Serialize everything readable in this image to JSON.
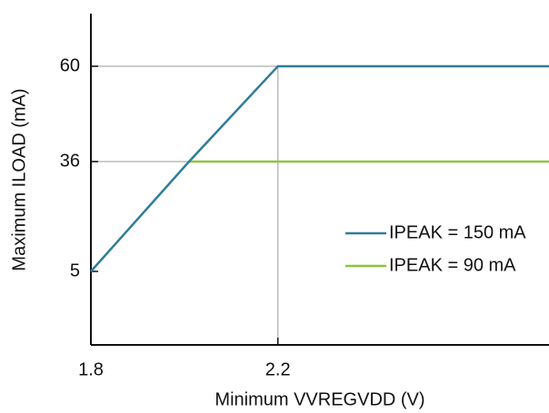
{
  "chart_data": {
    "type": "line",
    "x_label": "Minimum VVREGVDD (V)",
    "y_label": "Maximum ILOAD (mA)",
    "x": [
      1.8,
      2.01,
      2.2,
      2.78
    ],
    "series": [
      {
        "name": "IPEAK = 150 mA",
        "color": "#2e7e98",
        "values": [
          5,
          36,
          60,
          60
        ]
      },
      {
        "name": "IPEAK = 90 mA",
        "color": "#8cc63f",
        "values": [
          null,
          36,
          36,
          36
        ]
      }
    ],
    "xlim": [
      1.8,
      2.78
    ],
    "xticks": [
      1.8,
      2.2
    ],
    "ylim": [
      -16,
      73
    ],
    "yticks": [
      5,
      36,
      60
    ],
    "guide_color": "#bbbbbb"
  }
}
